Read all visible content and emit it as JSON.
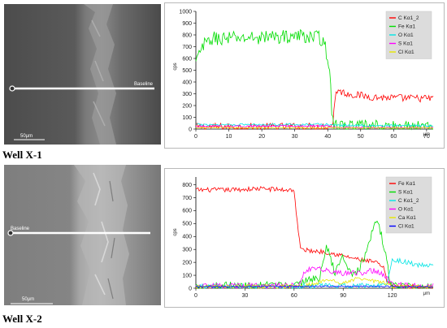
{
  "panels": [
    {
      "well_label": "Well X-1",
      "sem": {
        "baseline_label": "Baseline",
        "scalebar_label": "50μm"
      },
      "chart_data": {
        "type": "line",
        "xlabel": "μm",
        "ylabel": "cps",
        "xlim": [
          0,
          72
        ],
        "ylim": [
          0,
          1000
        ],
        "xticks": [
          0,
          10,
          20,
          30,
          40,
          50,
          60,
          70
        ],
        "yticks": [
          0,
          100,
          200,
          300,
          400,
          500,
          600,
          700,
          800,
          900,
          1000
        ],
        "legend_position": "top-right",
        "series": [
          {
            "name": "C Kα1_2",
            "color": "#ff0000",
            "x": [
              0,
              40.5,
              41.5,
              42.5,
              46,
              50,
              55,
              60,
              65,
              72
            ],
            "y": [
              18,
              22,
              40,
              330,
              300,
              285,
              270,
              265,
              262,
              260
            ],
            "noise": 32
          },
          {
            "name": "Fe Kα1",
            "color": "#00dd00",
            "x": [
              0,
              2,
              5,
              10,
              20,
              30,
              35,
              39,
              40.5,
              41.5,
              43,
              72
            ],
            "y": [
              560,
              700,
              770,
              770,
              780,
              790,
              790,
              760,
              500,
              60,
              18,
              14
            ],
            "noise": 60
          },
          {
            "name": "O Kα1",
            "color": "#00e5e5",
            "x": [
              0,
              40,
              43,
              55,
              65,
              72
            ],
            "y": [
              38,
              40,
              32,
              30,
              28,
              28
            ],
            "noise": 9
          },
          {
            "name": "S Kα1",
            "color": "#ff00ff",
            "x": [
              0,
              40,
              43,
              72
            ],
            "y": [
              22,
              28,
              14,
              12
            ],
            "noise": 7
          },
          {
            "name": "Cl Kα1",
            "color": "#e8e800",
            "x": [
              0,
              72
            ],
            "y": [
              12,
              10
            ],
            "noise": 5
          }
        ]
      }
    },
    {
      "well_label": "Well X-2",
      "sem": {
        "baseline_label": "Baseline",
        "scalebar_label": "50μm"
      },
      "chart_data": {
        "type": "line",
        "xlabel": "μm",
        "ylabel": "cps",
        "xlim": [
          0,
          145
        ],
        "ylim": [
          0,
          860
        ],
        "xticks": [
          0,
          30,
          60,
          90,
          120
        ],
        "yticks": [
          0,
          100,
          200,
          300,
          400,
          500,
          600,
          700,
          800
        ],
        "legend_position": "top-right",
        "series": [
          {
            "name": "Fe Kα1",
            "color": "#ff0000",
            "x": [
              0,
              20,
              40,
              55,
              60,
              62,
              64,
              70,
              80,
              90,
              100,
              110,
              115,
              117,
              120,
              125,
              145
            ],
            "y": [
              760,
              760,
              770,
              760,
              760,
              500,
              300,
              290,
              280,
              250,
              220,
              200,
              150,
              40,
              20,
              12,
              10
            ],
            "noise": 18
          },
          {
            "name": "S Kα1",
            "color": "#00dd00",
            "x": [
              0,
              62,
              70,
              75,
              80,
              85,
              90,
              95,
              100,
              105,
              110,
              113,
              116,
              119,
              125,
              145
            ],
            "y": [
              20,
              20,
              80,
              60,
              320,
              120,
              250,
              100,
              150,
              300,
              540,
              430,
              250,
              30,
              15,
              12
            ],
            "noise": 30
          },
          {
            "name": "C Kα1_2",
            "color": "#00e5e5",
            "x": [
              0,
              110,
              117,
              120,
              125,
              135,
              145
            ],
            "y": [
              15,
              20,
              40,
              230,
              210,
              180,
              170
            ],
            "noise": 20
          },
          {
            "name": "O Kα1",
            "color": "#ff00ff",
            "x": [
              0,
              63,
              66,
              70,
              80,
              90,
              100,
              110,
              115,
              120,
              145
            ],
            "y": [
              15,
              20,
              120,
              150,
              140,
              110,
              120,
              140,
              100,
              25,
              20
            ],
            "noise": 22
          },
          {
            "name": "Ca Kα1",
            "color": "#e8e800",
            "x": [
              0,
              65,
              80,
              90,
              100,
              115,
              120,
              145
            ],
            "y": [
              10,
              15,
              60,
              40,
              80,
              40,
              15,
              10
            ],
            "noise": 15
          },
          {
            "name": "Cl Kα1",
            "color": "#0000ff",
            "x": [
              0,
              80,
              100,
              145
            ],
            "y": [
              12,
              15,
              15,
              12
            ],
            "noise": 5
          }
        ]
      }
    }
  ]
}
